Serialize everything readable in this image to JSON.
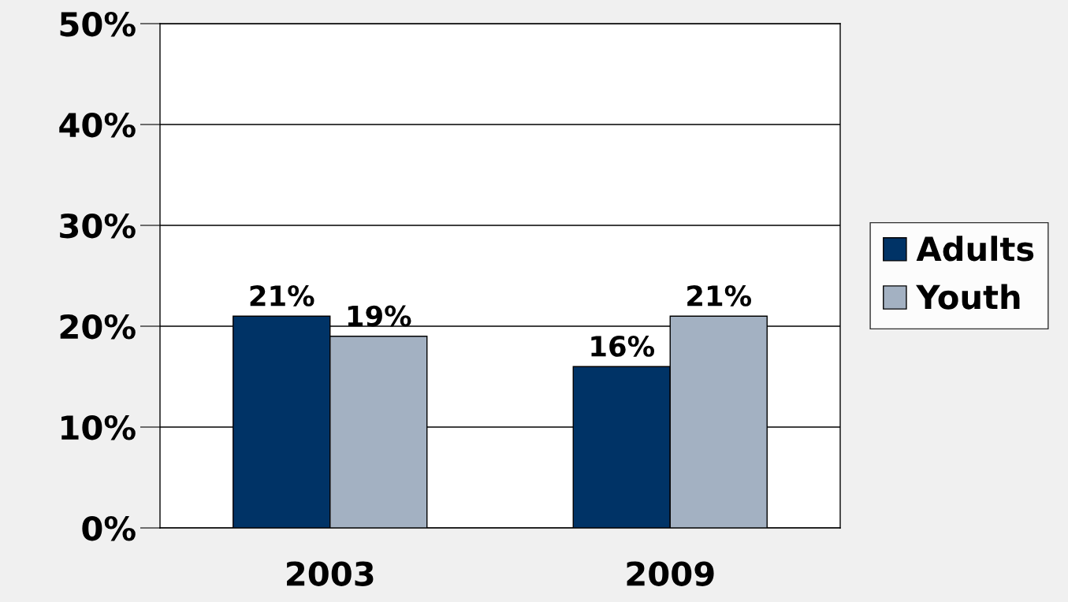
{
  "chart_data": {
    "type": "bar",
    "categories": [
      "2003",
      "2009"
    ],
    "series": [
      {
        "name": "Adults",
        "color": "#003366",
        "values": [
          21,
          16
        ],
        "value_labels": [
          "21%",
          "16%"
        ]
      },
      {
        "name": "Youth",
        "color": "#a3b1c2",
        "values": [
          19,
          21
        ],
        "value_labels": [
          "19%",
          "21%"
        ]
      }
    ],
    "ylim": [
      0,
      50
    ],
    "yticks": [
      {
        "value": 0,
        "label": "0%"
      },
      {
        "value": 10,
        "label": "10%"
      },
      {
        "value": 20,
        "label": "20%"
      },
      {
        "value": 30,
        "label": "30%"
      },
      {
        "value": 40,
        "label": "40%"
      },
      {
        "value": 50,
        "label": "50%"
      }
    ],
    "grid": "y",
    "legend": "right"
  }
}
